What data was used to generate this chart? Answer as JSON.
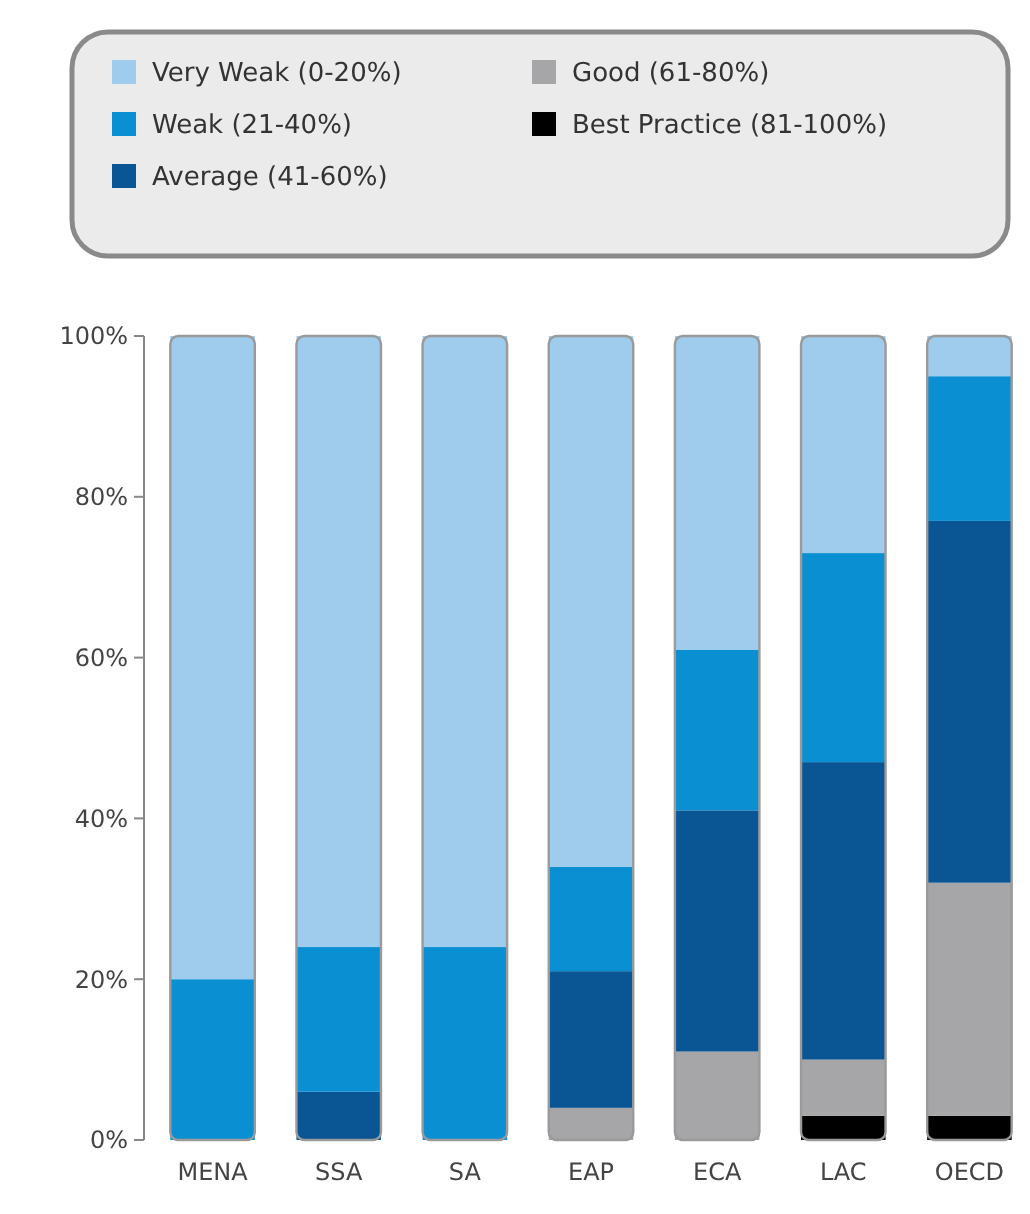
{
  "chart_data": {
    "type": "bar",
    "stacked": true,
    "categories": [
      "MENA",
      "SSA",
      "SA",
      "EAP",
      "ECA",
      "LAC",
      "OECD"
    ],
    "series": [
      {
        "name": "Best Practice (81-100%)",
        "color": "#000000",
        "values": [
          null,
          null,
          null,
          null,
          null,
          3,
          3
        ]
      },
      {
        "name": "Good (61-80%)",
        "color": "#a6a6a8",
        "values": [
          null,
          null,
          null,
          4,
          11,
          7,
          29
        ]
      },
      {
        "name": "Average (41-60%)",
        "color": "#0a5695",
        "values": [
          null,
          6,
          null,
          17,
          30,
          37,
          45
        ]
      },
      {
        "name": "Weak (21-40%)",
        "color": "#0b8fd3",
        "values": [
          20,
          18,
          24,
          13,
          20,
          26,
          18
        ]
      },
      {
        "name": "Very Weak (0-20%)",
        "color": "#9fcbec",
        "values": [
          80,
          76,
          76,
          66,
          39,
          27,
          5
        ]
      }
    ],
    "ylim": [
      0,
      100
    ],
    "yticks": [
      {
        "value": 0,
        "label": "0%"
      },
      {
        "value": 20,
        "label": "20%"
      },
      {
        "value": 40,
        "label": "40%"
      },
      {
        "value": 60,
        "label": "60%"
      },
      {
        "value": 80,
        "label": "80%"
      },
      {
        "value": 100,
        "label": "100%"
      }
    ],
    "legend": "top",
    "grid": false
  }
}
